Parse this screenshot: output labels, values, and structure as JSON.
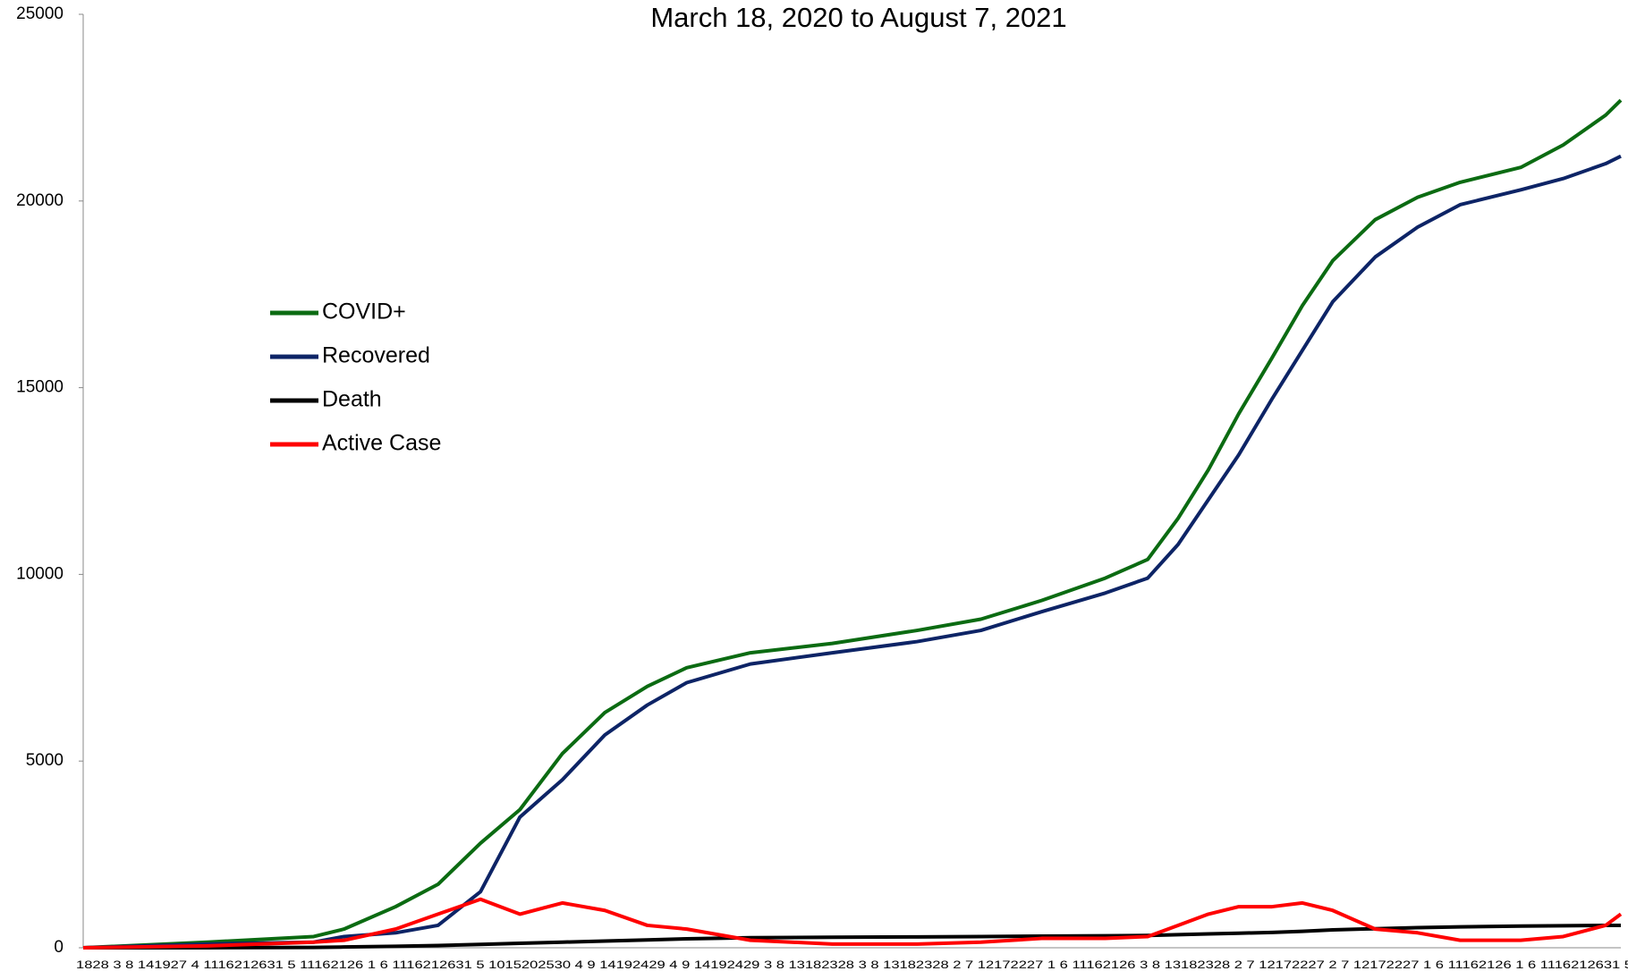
{
  "chart_data": {
    "type": "line",
    "title": "March 18, 2020 to August 7, 2021",
    "x_axis_text": "1828 3 8 141927 4 1116212631 5 11162126 1 6 1116212631 5 1015202530 4 9 14192429 4 9 14192429 3 8 13182328 3 8 13182328 2 7 12172227 1 6 11162126 3 8 13182328 2 7 12172227 2 7 12172227 1 6 11162126 1 6 1116212631 5",
    "x": [
      0,
      41,
      76,
      86,
      103,
      117,
      131,
      144,
      158,
      172,
      186,
      199,
      220,
      247,
      275,
      296,
      316,
      337,
      351,
      361,
      371,
      381,
      392,
      402,
      412,
      426,
      440,
      454,
      474,
      488,
      502,
      507
    ],
    "xlim": [
      0,
      507
    ],
    "ylim": [
      0,
      25000
    ],
    "yticks": [
      0,
      5000,
      10000,
      15000,
      20000,
      25000
    ],
    "series": [
      {
        "name": "COVID+",
        "color": "#0b6b12",
        "values": [
          0,
          150,
          300,
          500,
          1100,
          1700,
          2800,
          3700,
          5200,
          6300,
          7000,
          7500,
          7900,
          8150,
          8500,
          8800,
          9300,
          9900,
          10400,
          11500,
          12800,
          14300,
          15800,
          17200,
          18400,
          19500,
          20100,
          20500,
          20900,
          21500,
          22300,
          22700
        ]
      },
      {
        "name": "Recovered",
        "color": "#0d2466",
        "values": [
          0,
          100,
          150,
          300,
          400,
          600,
          1500,
          3500,
          4500,
          5700,
          6500,
          7100,
          7600,
          7900,
          8200,
          8500,
          9000,
          9500,
          9900,
          10800,
          12000,
          13200,
          14700,
          16000,
          17300,
          18500,
          19300,
          19900,
          20300,
          20600,
          21000,
          21200
        ]
      },
      {
        "name": "Death",
        "color": "#000000",
        "values": [
          0,
          0,
          10,
          20,
          40,
          60,
          90,
          120,
          150,
          180,
          210,
          240,
          270,
          280,
          290,
          300,
          310,
          320,
          330,
          350,
          370,
          390,
          410,
          440,
          480,
          510,
          540,
          560,
          580,
          590,
          600,
          600
        ]
      },
      {
        "name": "Active Case",
        "color": "#ff0000",
        "values": [
          0,
          50,
          150,
          200,
          500,
          900,
          1300,
          900,
          1200,
          1000,
          600,
          500,
          200,
          100,
          100,
          150,
          250,
          250,
          300,
          600,
          900,
          1100,
          1100,
          1200,
          1000,
          500,
          400,
          200,
          200,
          300,
          600,
          900
        ]
      }
    ]
  }
}
